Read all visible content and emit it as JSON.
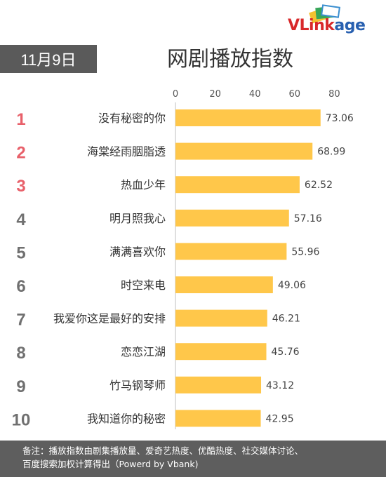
{
  "logo": {
    "v": "VL",
    "rest": "ink",
    "age": "age"
  },
  "date_badge": "11月9日",
  "chart_data": {
    "type": "bar",
    "orientation": "horizontal",
    "title": "网剧播放指数",
    "ranks": [
      "1",
      "2",
      "3",
      "4",
      "5",
      "6",
      "7",
      "8",
      "9",
      "10"
    ],
    "categories": [
      "没有秘密的你",
      "海棠经雨胭脂透",
      "热血少年",
      "明月照我心",
      "满满喜欢你",
      "时空来电",
      "我爱你这是最好的安排",
      "恋恋江湖",
      "竹马钢琴师",
      "我知道你的秘密"
    ],
    "values": [
      73.06,
      68.99,
      62.52,
      57.16,
      55.96,
      49.06,
      46.21,
      45.76,
      43.12,
      42.95
    ],
    "value_labels": [
      "73.06",
      "68.99",
      "62.52",
      "57.16",
      "55.96",
      "49.06",
      "46.21",
      "45.76",
      "43.12",
      "42.95"
    ],
    "xticks": [
      "0",
      "20",
      "40",
      "60",
      "80"
    ],
    "xlim": [
      0,
      80
    ],
    "axis_position": "top",
    "grid": false,
    "bar_color": "#ffc74a",
    "rank_colors": [
      "#e8606a",
      "#e8606a",
      "#e8606a",
      "#707070",
      "#707070",
      "#707070",
      "#707070",
      "#707070",
      "#707070",
      "#707070"
    ]
  },
  "footnote": {
    "line1": "备注：播放指数由剧集播放量、爱奇艺热度、优酷热度、社交媒体讨论、",
    "line2": "百度搜索加权计算得出（Powerd by Vbank)"
  }
}
